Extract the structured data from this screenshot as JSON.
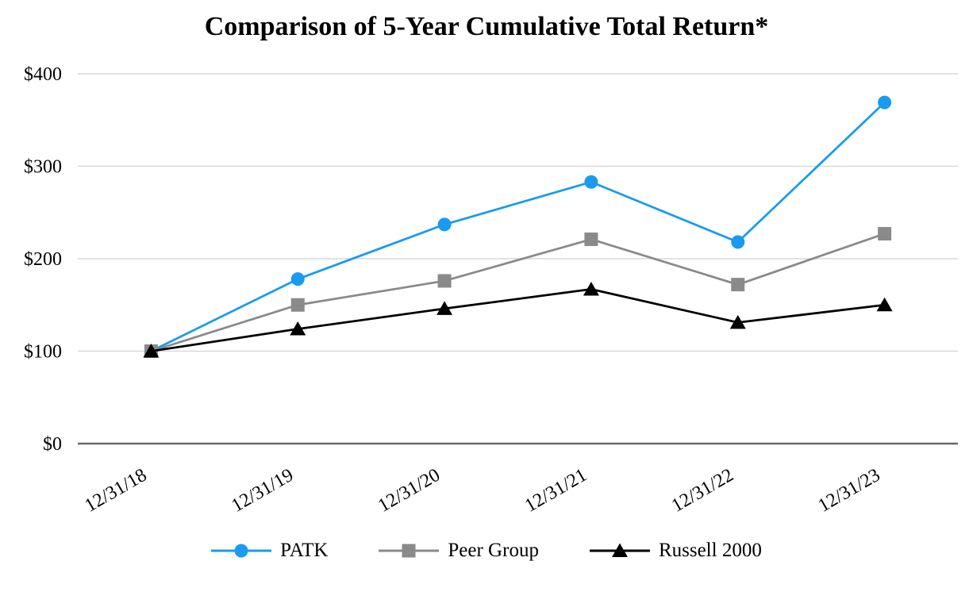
{
  "title": "Comparison of 5-Year Cumulative Total Return*",
  "chart_data": {
    "type": "line",
    "title": "Comparison of 5-Year Cumulative Total Return*",
    "categories": [
      "12/31/18",
      "12/31/19",
      "12/31/20",
      "12/31/21",
      "12/31/22",
      "12/31/23"
    ],
    "series": [
      {
        "name": "PATK",
        "marker": "circle",
        "color": "#189BF0",
        "values": [
          100,
          178,
          237,
          283,
          218,
          369
        ]
      },
      {
        "name": "Peer Group",
        "marker": "square",
        "color": "#8A8A8A",
        "values": [
          100,
          150,
          176,
          221,
          172,
          227
        ]
      },
      {
        "name": "Russell 2000",
        "marker": "triangle",
        "color": "#000000",
        "values": [
          100,
          124,
          146,
          167,
          131,
          150
        ]
      }
    ],
    "xlabel": "",
    "ylabel": "",
    "ylim": [
      0,
      400
    ],
    "y_ticks": [
      {
        "value": 0,
        "label": "$0"
      },
      {
        "value": 100,
        "label": "$100"
      },
      {
        "value": 200,
        "label": "$200"
      },
      {
        "value": 300,
        "label": "$300"
      },
      {
        "value": 400,
        "label": "$400"
      }
    ],
    "grid": "horizontal",
    "legend_position": "bottom",
    "colors": {
      "gridline": "#D9D9D9",
      "axis_line": "#696969",
      "text": "#000000",
      "background": "#FFFFFF"
    }
  }
}
